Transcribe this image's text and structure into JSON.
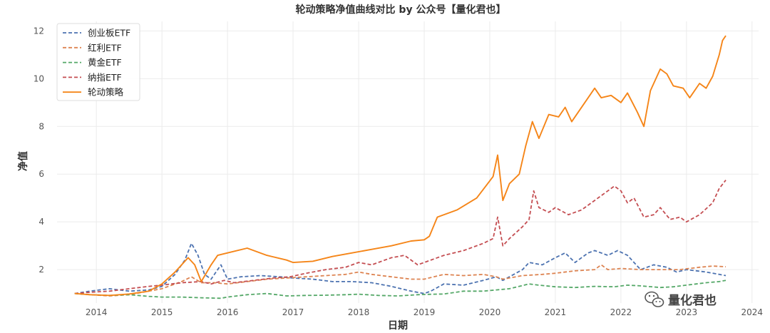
{
  "watermark": {
    "icon": "wechat-icon",
    "text": "量化君也"
  },
  "chart_data": {
    "type": "line",
    "title": "轮动策略净值曲线对比 by 公众号【量化君也】",
    "xlabel": "日期",
    "ylabel": "净值",
    "xlim": [
      2013.4,
      2024.1
    ],
    "ylim": [
      0.6,
      12.4
    ],
    "xticks": [
      "2014",
      "2015",
      "2016",
      "2017",
      "2018",
      "2019",
      "2020",
      "2021",
      "2022",
      "2023",
      "2024"
    ],
    "xtick_values": [
      2014,
      2015,
      2016,
      2017,
      2018,
      2019,
      2020,
      2021,
      2022,
      2023,
      2024
    ],
    "yticks": [
      "2",
      "4",
      "6",
      "8",
      "10",
      "12"
    ],
    "ytick_values": [
      2,
      4,
      6,
      8,
      10,
      12
    ],
    "grid": true,
    "legend_position": "top-left",
    "series": [
      {
        "name": "创业板ETF",
        "color": "#4c72b0",
        "dashed": true,
        "points": [
          [
            2013.67,
            1.0
          ],
          [
            2013.9,
            1.1
          ],
          [
            2014.2,
            1.2
          ],
          [
            2014.5,
            1.1
          ],
          [
            2014.8,
            1.15
          ],
          [
            2015.0,
            1.3
          ],
          [
            2015.2,
            1.8
          ],
          [
            2015.35,
            2.4
          ],
          [
            2015.45,
            3.1
          ],
          [
            2015.55,
            2.6
          ],
          [
            2015.65,
            1.8
          ],
          [
            2015.75,
            1.6
          ],
          [
            2015.9,
            2.2
          ],
          [
            2016.0,
            1.6
          ],
          [
            2016.2,
            1.7
          ],
          [
            2016.5,
            1.75
          ],
          [
            2016.8,
            1.7
          ],
          [
            2017.0,
            1.65
          ],
          [
            2017.3,
            1.6
          ],
          [
            2017.6,
            1.5
          ],
          [
            2017.9,
            1.5
          ],
          [
            2018.2,
            1.45
          ],
          [
            2018.5,
            1.3
          ],
          [
            2018.8,
            1.1
          ],
          [
            2019.0,
            1.0
          ],
          [
            2019.1,
            1.1
          ],
          [
            2019.3,
            1.4
          ],
          [
            2019.6,
            1.35
          ],
          [
            2019.9,
            1.55
          ],
          [
            2020.1,
            1.7
          ],
          [
            2020.2,
            1.55
          ],
          [
            2020.5,
            2.0
          ],
          [
            2020.6,
            2.3
          ],
          [
            2020.8,
            2.2
          ],
          [
            2021.0,
            2.5
          ],
          [
            2021.15,
            2.7
          ],
          [
            2021.3,
            2.3
          ],
          [
            2021.5,
            2.7
          ],
          [
            2021.6,
            2.8
          ],
          [
            2021.8,
            2.6
          ],
          [
            2021.95,
            2.8
          ],
          [
            2022.1,
            2.6
          ],
          [
            2022.3,
            2.0
          ],
          [
            2022.5,
            2.2
          ],
          [
            2022.7,
            2.1
          ],
          [
            2022.85,
            1.9
          ],
          [
            2023.0,
            2.0
          ],
          [
            2023.3,
            1.9
          ],
          [
            2023.5,
            1.8
          ],
          [
            2023.6,
            1.75
          ]
        ]
      },
      {
        "name": "红利ETF",
        "color": "#dd8452",
        "dashed": true,
        "points": [
          [
            2013.67,
            1.0
          ],
          [
            2013.9,
            0.95
          ],
          [
            2014.2,
            0.9
          ],
          [
            2014.5,
            0.95
          ],
          [
            2014.8,
            1.1
          ],
          [
            2015.0,
            1.2
          ],
          [
            2015.3,
            1.5
          ],
          [
            2015.45,
            1.7
          ],
          [
            2015.6,
            1.45
          ],
          [
            2015.8,
            1.45
          ],
          [
            2016.0,
            1.4
          ],
          [
            2016.3,
            1.5
          ],
          [
            2016.6,
            1.6
          ],
          [
            2016.9,
            1.65
          ],
          [
            2017.2,
            1.7
          ],
          [
            2017.5,
            1.75
          ],
          [
            2017.8,
            1.8
          ],
          [
            2018.0,
            1.9
          ],
          [
            2018.2,
            1.8
          ],
          [
            2018.5,
            1.7
          ],
          [
            2018.8,
            1.6
          ],
          [
            2019.0,
            1.6
          ],
          [
            2019.3,
            1.8
          ],
          [
            2019.6,
            1.75
          ],
          [
            2019.9,
            1.8
          ],
          [
            2020.1,
            1.7
          ],
          [
            2020.2,
            1.6
          ],
          [
            2020.5,
            1.75
          ],
          [
            2020.8,
            1.8
          ],
          [
            2021.0,
            1.85
          ],
          [
            2021.3,
            1.95
          ],
          [
            2021.6,
            2.0
          ],
          [
            2021.7,
            2.2
          ],
          [
            2021.8,
            2.0
          ],
          [
            2022.0,
            2.05
          ],
          [
            2022.3,
            2.0
          ],
          [
            2022.6,
            2.0
          ],
          [
            2022.9,
            2.0
          ],
          [
            2023.2,
            2.1
          ],
          [
            2023.4,
            2.15
          ],
          [
            2023.6,
            2.12
          ]
        ]
      },
      {
        "name": "黄金ETF",
        "color": "#55a868",
        "dashed": true,
        "points": [
          [
            2013.67,
            1.0
          ],
          [
            2013.9,
            0.95
          ],
          [
            2014.2,
            0.92
          ],
          [
            2014.5,
            0.95
          ],
          [
            2014.8,
            0.88
          ],
          [
            2015.0,
            0.85
          ],
          [
            2015.3,
            0.85
          ],
          [
            2015.6,
            0.82
          ],
          [
            2015.9,
            0.8
          ],
          [
            2016.0,
            0.85
          ],
          [
            2016.3,
            0.95
          ],
          [
            2016.6,
            1.0
          ],
          [
            2016.9,
            0.9
          ],
          [
            2017.2,
            0.92
          ],
          [
            2017.5,
            0.93
          ],
          [
            2017.8,
            0.95
          ],
          [
            2018.0,
            0.97
          ],
          [
            2018.3,
            0.92
          ],
          [
            2018.6,
            0.9
          ],
          [
            2018.9,
            0.95
          ],
          [
            2019.0,
            0.96
          ],
          [
            2019.3,
            0.98
          ],
          [
            2019.6,
            1.1
          ],
          [
            2019.9,
            1.1
          ],
          [
            2020.1,
            1.15
          ],
          [
            2020.3,
            1.2
          ],
          [
            2020.6,
            1.4
          ],
          [
            2020.75,
            1.35
          ],
          [
            2021.0,
            1.28
          ],
          [
            2021.3,
            1.25
          ],
          [
            2021.6,
            1.3
          ],
          [
            2021.9,
            1.28
          ],
          [
            2022.1,
            1.35
          ],
          [
            2022.3,
            1.32
          ],
          [
            2022.6,
            1.25
          ],
          [
            2022.8,
            1.28
          ],
          [
            2023.0,
            1.35
          ],
          [
            2023.3,
            1.45
          ],
          [
            2023.5,
            1.5
          ],
          [
            2023.6,
            1.55
          ]
        ]
      },
      {
        "name": "纳指ETF",
        "color": "#c44e52",
        "dashed": true,
        "points": [
          [
            2013.67,
            1.0
          ],
          [
            2013.9,
            1.05
          ],
          [
            2014.2,
            1.1
          ],
          [
            2014.5,
            1.2
          ],
          [
            2014.8,
            1.3
          ],
          [
            2015.0,
            1.35
          ],
          [
            2015.3,
            1.45
          ],
          [
            2015.6,
            1.5
          ],
          [
            2015.75,
            1.4
          ],
          [
            2015.95,
            1.55
          ],
          [
            2016.1,
            1.45
          ],
          [
            2016.4,
            1.55
          ],
          [
            2016.7,
            1.65
          ],
          [
            2016.95,
            1.7
          ],
          [
            2017.2,
            1.85
          ],
          [
            2017.5,
            2.0
          ],
          [
            2017.8,
            2.1
          ],
          [
            2018.0,
            2.3
          ],
          [
            2018.2,
            2.2
          ],
          [
            2018.5,
            2.5
          ],
          [
            2018.7,
            2.6
          ],
          [
            2018.9,
            2.2
          ],
          [
            2019.0,
            2.3
          ],
          [
            2019.3,
            2.6
          ],
          [
            2019.6,
            2.8
          ],
          [
            2019.9,
            3.1
          ],
          [
            2020.05,
            3.3
          ],
          [
            2020.12,
            4.2
          ],
          [
            2020.2,
            3.0
          ],
          [
            2020.3,
            3.3
          ],
          [
            2020.5,
            3.8
          ],
          [
            2020.6,
            4.1
          ],
          [
            2020.67,
            5.3
          ],
          [
            2020.75,
            4.6
          ],
          [
            2020.9,
            4.4
          ],
          [
            2021.0,
            4.6
          ],
          [
            2021.2,
            4.3
          ],
          [
            2021.4,
            4.5
          ],
          [
            2021.6,
            4.9
          ],
          [
            2021.8,
            5.3
          ],
          [
            2021.9,
            5.5
          ],
          [
            2022.0,
            5.3
          ],
          [
            2022.1,
            4.8
          ],
          [
            2022.2,
            5.0
          ],
          [
            2022.35,
            4.2
          ],
          [
            2022.5,
            4.3
          ],
          [
            2022.6,
            4.6
          ],
          [
            2022.75,
            4.1
          ],
          [
            2022.9,
            4.2
          ],
          [
            2023.0,
            4.0
          ],
          [
            2023.2,
            4.3
          ],
          [
            2023.4,
            4.8
          ],
          [
            2023.5,
            5.4
          ],
          [
            2023.6,
            5.75
          ]
        ]
      },
      {
        "name": "轮动策略",
        "color": "#f58518",
        "dashed": false,
        "points": [
          [
            2013.67,
            1.0
          ],
          [
            2013.9,
            0.95
          ],
          [
            2014.2,
            0.92
          ],
          [
            2014.5,
            0.98
          ],
          [
            2014.8,
            1.1
          ],
          [
            2015.0,
            1.4
          ],
          [
            2015.2,
            1.9
          ],
          [
            2015.4,
            2.5
          ],
          [
            2015.5,
            2.2
          ],
          [
            2015.6,
            1.5
          ],
          [
            2015.75,
            2.2
          ],
          [
            2015.85,
            2.6
          ],
          [
            2016.0,
            2.7
          ],
          [
            2016.3,
            2.9
          ],
          [
            2016.6,
            2.6
          ],
          [
            2016.9,
            2.4
          ],
          [
            2017.0,
            2.3
          ],
          [
            2017.3,
            2.35
          ],
          [
            2017.6,
            2.55
          ],
          [
            2017.9,
            2.7
          ],
          [
            2018.2,
            2.85
          ],
          [
            2018.5,
            3.0
          ],
          [
            2018.8,
            3.2
          ],
          [
            2019.0,
            3.25
          ],
          [
            2019.08,
            3.4
          ],
          [
            2019.2,
            4.2
          ],
          [
            2019.5,
            4.5
          ],
          [
            2019.8,
            5.0
          ],
          [
            2020.05,
            5.9
          ],
          [
            2020.12,
            6.8
          ],
          [
            2020.2,
            4.9
          ],
          [
            2020.3,
            5.6
          ],
          [
            2020.45,
            6.0
          ],
          [
            2020.55,
            7.2
          ],
          [
            2020.65,
            8.2
          ],
          [
            2020.75,
            7.5
          ],
          [
            2020.9,
            8.5
          ],
          [
            2021.05,
            8.4
          ],
          [
            2021.15,
            8.8
          ],
          [
            2021.25,
            8.2
          ],
          [
            2021.45,
            9.0
          ],
          [
            2021.6,
            9.6
          ],
          [
            2021.7,
            9.2
          ],
          [
            2021.85,
            9.3
          ],
          [
            2022.0,
            9.0
          ],
          [
            2022.1,
            9.4
          ],
          [
            2022.25,
            8.6
          ],
          [
            2022.35,
            8.0
          ],
          [
            2022.45,
            9.5
          ],
          [
            2022.6,
            10.4
          ],
          [
            2022.7,
            10.2
          ],
          [
            2022.8,
            9.7
          ],
          [
            2022.95,
            9.6
          ],
          [
            2023.05,
            9.2
          ],
          [
            2023.2,
            9.8
          ],
          [
            2023.3,
            9.6
          ],
          [
            2023.4,
            10.1
          ],
          [
            2023.5,
            11.0
          ],
          [
            2023.55,
            11.6
          ],
          [
            2023.6,
            11.8
          ]
        ]
      }
    ]
  }
}
